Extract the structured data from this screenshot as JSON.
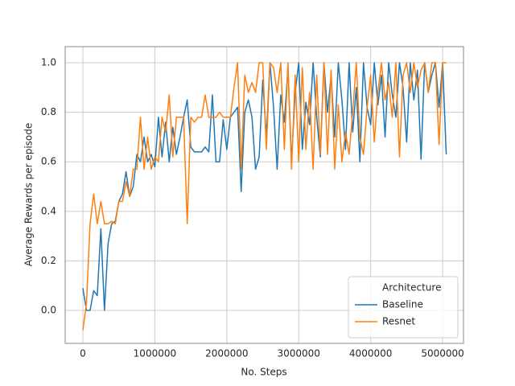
{
  "chart_data": {
    "type": "line",
    "xlabel": "No. Steps",
    "ylabel": "Average Rewards per episode",
    "legend_title": "Architecture",
    "legend_position": "lower right",
    "grid": true,
    "xlim": [
      -246000,
      5290000
    ],
    "ylim": [
      -0.133,
      1.065
    ],
    "xticks": [
      0,
      1000000,
      2000000,
      3000000,
      4000000,
      5000000
    ],
    "yticks": [
      {
        "value": 0,
        "label": "0.0"
      },
      0.2,
      0.4,
      0.6,
      0.8,
      {
        "value": 1,
        "label": "1.0"
      }
    ],
    "x": [
      0,
      50000,
      100000,
      150000,
      200000,
      250000,
      300000,
      350000,
      400000,
      450000,
      500000,
      550000,
      600000,
      650000,
      700000,
      750000,
      800000,
      850000,
      900000,
      950000,
      1000000,
      1050000,
      1100000,
      1150000,
      1200000,
      1250000,
      1300000,
      1350000,
      1400000,
      1450000,
      1500000,
      1550000,
      1600000,
      1650000,
      1700000,
      1750000,
      1800000,
      1850000,
      1900000,
      1950000,
      2000000,
      2050000,
      2100000,
      2150000,
      2200000,
      2250000,
      2300000,
      2350000,
      2400000,
      2450000,
      2500000,
      2550000,
      2600000,
      2650000,
      2700000,
      2750000,
      2800000,
      2850000,
      2900000,
      2950000,
      3000000,
      3050000,
      3100000,
      3150000,
      3200000,
      3250000,
      3300000,
      3350000,
      3400000,
      3450000,
      3500000,
      3550000,
      3600000,
      3650000,
      3700000,
      3750000,
      3800000,
      3850000,
      3900000,
      3950000,
      4000000,
      4050000,
      4100000,
      4150000,
      4200000,
      4250000,
      4300000,
      4350000,
      4400000,
      4450000,
      4500000,
      4550000,
      4600000,
      4650000,
      4700000,
      4750000,
      4800000,
      4850000,
      4900000,
      4950000,
      5000000,
      5050000
    ],
    "series": [
      {
        "name": "Baseline",
        "color": "#1f77b4",
        "values": [
          0.09,
          0.0,
          0.0,
          0.08,
          0.06,
          0.33,
          0.0,
          0.27,
          0.35,
          0.36,
          0.44,
          0.47,
          0.56,
          0.46,
          0.5,
          0.63,
          0.6,
          0.7,
          0.6,
          0.63,
          0.58,
          0.78,
          0.62,
          0.76,
          0.6,
          0.74,
          0.63,
          0.7,
          0.78,
          0.85,
          0.66,
          0.64,
          0.64,
          0.64,
          0.66,
          0.64,
          0.87,
          0.6,
          0.6,
          0.77,
          0.65,
          0.78,
          0.8,
          0.82,
          0.48,
          0.8,
          0.85,
          0.78,
          0.57,
          0.62,
          0.93,
          0.7,
          1.0,
          0.82,
          0.57,
          0.87,
          0.76,
          0.98,
          0.6,
          0.88,
          1.0,
          0.65,
          0.84,
          0.75,
          1.0,
          0.78,
          0.62,
          1.0,
          0.8,
          0.95,
          0.7,
          1.0,
          0.85,
          0.65,
          1.0,
          0.72,
          0.9,
          0.6,
          1.0,
          0.82,
          0.75,
          1.0,
          0.83,
          0.95,
          0.7,
          1.0,
          0.87,
          0.78,
          1.0,
          0.9,
          0.68,
          1.0,
          0.85,
          0.97,
          0.61,
          1.0,
          0.88,
          0.95,
          1.0,
          0.82,
          1.0,
          0.63
        ]
      },
      {
        "name": "Resnet",
        "color": "#ff7f0e",
        "values": [
          -0.08,
          0.03,
          0.35,
          0.47,
          0.35,
          0.44,
          0.35,
          0.35,
          0.36,
          0.35,
          0.44,
          0.44,
          0.52,
          0.46,
          0.57,
          0.57,
          0.78,
          0.57,
          0.7,
          0.57,
          0.62,
          0.6,
          0.78,
          0.72,
          0.87,
          0.62,
          0.78,
          0.78,
          0.78,
          0.35,
          0.78,
          0.76,
          0.78,
          0.78,
          0.87,
          0.78,
          0.78,
          0.78,
          0.8,
          0.78,
          0.78,
          0.78,
          0.9,
          1.0,
          0.57,
          0.95,
          0.88,
          0.92,
          0.88,
          1.0,
          1.0,
          0.65,
          1.0,
          0.98,
          0.88,
          1.0,
          0.65,
          1.0,
          0.57,
          0.95,
          0.6,
          0.98,
          0.65,
          0.88,
          0.57,
          0.95,
          0.63,
          1.0,
          0.63,
          0.97,
          0.57,
          0.83,
          0.6,
          0.72,
          0.63,
          0.8,
          1.0,
          0.7,
          0.63,
          0.82,
          0.95,
          0.68,
          0.88,
          1.0,
          0.85,
          0.92,
          0.78,
          1.0,
          0.62,
          0.95,
          1.0,
          0.88,
          1.0,
          0.9,
          0.97,
          1.0,
          0.88,
          1.0,
          1.0,
          0.67,
          1.0,
          1.0
        ]
      }
    ]
  }
}
